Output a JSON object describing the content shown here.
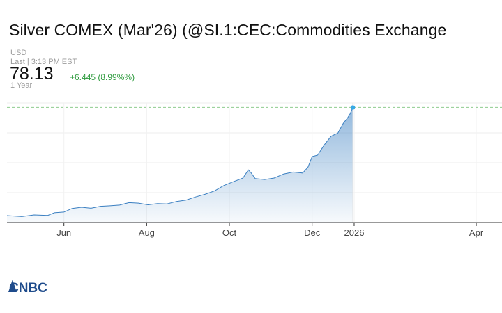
{
  "header": {
    "title": "Silver COMEX (Mar'26) (@SI.1:CEC:Commodities Exchange",
    "currency": "USD",
    "last_updated": "Last | 3:13 PM EST",
    "price": "78.13",
    "change": "+6.445 (8.99%%)",
    "range": "1 Year",
    "change_color": "#2e9b3e"
  },
  "brand": {
    "name": "CNBC"
  },
  "chart_data": {
    "type": "area",
    "title": "Silver COMEX (Mar'26) (@SI.1:CEC:Commodities Exchange",
    "xlabel": "",
    "ylabel": "",
    "x_ticks": [
      "Jun",
      "Aug",
      "Oct",
      "Dec",
      "2026",
      "Apr"
    ],
    "x_tick_dates": [
      "2025-06-01",
      "2025-08-01",
      "2025-10-01",
      "2025-12-01",
      "2026-01-01",
      "2026-04-01"
    ],
    "xlim": [
      "2025-04-20",
      "2026-04-20"
    ],
    "ylim": [
      30,
      80
    ],
    "grid": true,
    "line_color": "#3a7fc1",
    "fill_color": "#3a7fc1",
    "reference_line": {
      "value": 78.13,
      "style": "dashed",
      "color": "#8fcc8f"
    },
    "series": [
      {
        "x": [
          "2025-04-20",
          "2025-05-01",
          "2025-05-10",
          "2025-05-20",
          "2025-05-25",
          "2025-06-01",
          "2025-06-07",
          "2025-06-14",
          "2025-06-21",
          "2025-06-28",
          "2025-07-05",
          "2025-07-12",
          "2025-07-19",
          "2025-07-26",
          "2025-08-02",
          "2025-08-09",
          "2025-08-16",
          "2025-08-23",
          "2025-08-30",
          "2025-09-06",
          "2025-09-13",
          "2025-09-20",
          "2025-09-27",
          "2025-10-04",
          "2025-10-11",
          "2025-10-15",
          "2025-10-17",
          "2025-10-20",
          "2025-10-27",
          "2025-11-03",
          "2025-11-10",
          "2025-11-17",
          "2025-11-24",
          "2025-11-28",
          "2025-12-01",
          "2025-12-05",
          "2025-12-10",
          "2025-12-15",
          "2025-12-20",
          "2025-12-24",
          "2025-12-27",
          "2025-12-29",
          "2025-12-31"
        ],
        "values": [
          32.9,
          32.5,
          33.2,
          33.0,
          34.1,
          34.4,
          35.9,
          36.4,
          36.0,
          36.8,
          37.0,
          37.3,
          38.3,
          38.1,
          37.4,
          37.9,
          37.8,
          38.8,
          39.4,
          40.7,
          41.8,
          43.2,
          45.5,
          47.1,
          48.6,
          52.0,
          50.8,
          48.4,
          48.0,
          48.6,
          50.3,
          51.1,
          50.7,
          53.2,
          57.6,
          58.2,
          62.5,
          66.1,
          67.4,
          71.5,
          73.6,
          75.4,
          78.1
        ]
      }
    ]
  }
}
